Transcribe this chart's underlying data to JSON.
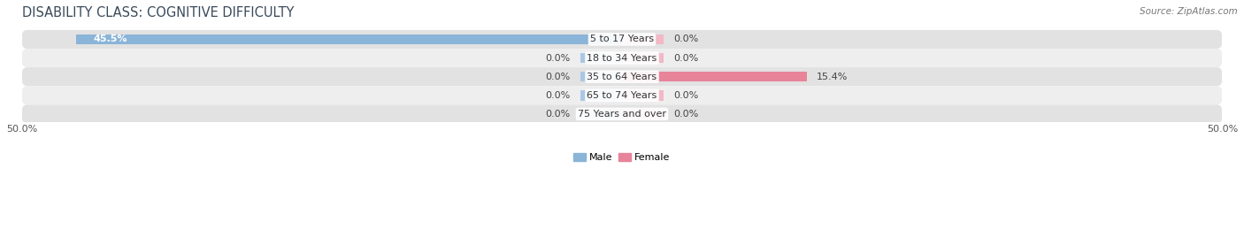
{
  "title": "DISABILITY CLASS: COGNITIVE DIFFICULTY",
  "source": "Source: ZipAtlas.com",
  "categories": [
    "5 to 17 Years",
    "18 to 34 Years",
    "35 to 64 Years",
    "65 to 74 Years",
    "75 Years and over"
  ],
  "male_values": [
    45.5,
    0.0,
    0.0,
    0.0,
    0.0
  ],
  "female_values": [
    0.0,
    0.0,
    15.4,
    0.0,
    0.0
  ],
  "male_color": "#8ab4d8",
  "female_color": "#e8849a",
  "male_stub_color": "#aac8e4",
  "female_stub_color": "#f2b8c6",
  "male_label": "Male",
  "female_label": "Female",
  "xlim": 50.0,
  "stub_size": 3.5,
  "bar_height": 0.55,
  "row_bg_dark": "#e2e2e2",
  "row_bg_light": "#eeeeee",
  "figure_bg": "#ffffff",
  "title_color": "#3a4a5a",
  "title_fontsize": 10.5,
  "label_fontsize": 8,
  "value_fontsize": 8,
  "tick_fontsize": 8,
  "source_fontsize": 7.5
}
